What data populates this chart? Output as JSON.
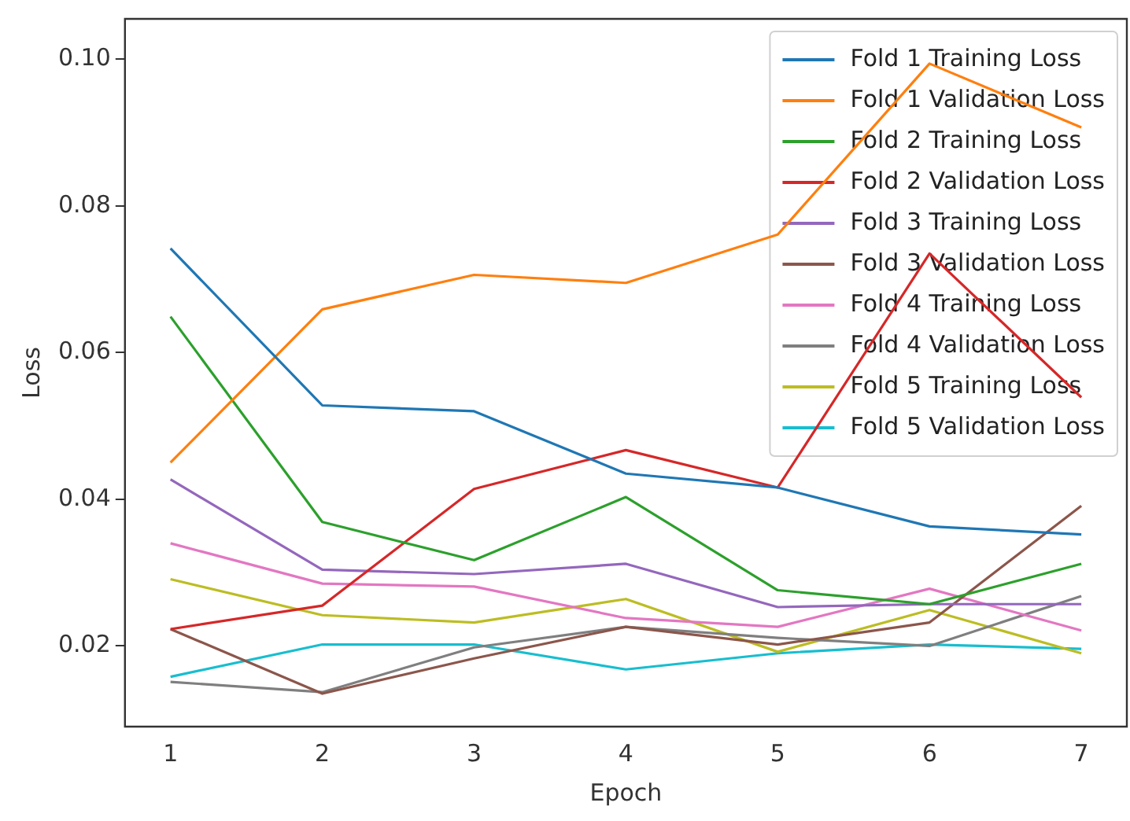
{
  "chart_data": {
    "type": "line",
    "xlabel": "Epoch",
    "ylabel": "Loss",
    "x": [
      1,
      2,
      3,
      4,
      5,
      6,
      7
    ],
    "xlim": [
      0.7,
      7.3
    ],
    "xticks": [
      1,
      2,
      3,
      4,
      5,
      6,
      7
    ],
    "ylim": [
      0.009,
      0.1055
    ],
    "yticks": [
      {
        "value": 0.02,
        "label": "0.02"
      },
      {
        "value": 0.04,
        "label": "0.04"
      },
      {
        "value": 0.06,
        "label": "0.06"
      },
      {
        "value": 0.08,
        "label": "0.08"
      },
      {
        "value": 0.1,
        "label": "0.10"
      }
    ],
    "grid": false,
    "legend": "top right",
    "marker": "none",
    "line_style": "solid",
    "series": [
      {
        "name": "Fold 1 Training Loss",
        "color": "#1f77b4",
        "values": [
          0.0742,
          0.0528,
          0.052,
          0.0435,
          0.0416,
          0.0363,
          0.0352
        ]
      },
      {
        "name": "Fold 1 Validation Loss",
        "color": "#ff7f0e",
        "values": [
          0.045,
          0.0659,
          0.0706,
          0.0695,
          0.0761,
          0.0994,
          0.0907
        ]
      },
      {
        "name": "Fold 2 Training Loss",
        "color": "#2ca02c",
        "values": [
          0.0649,
          0.0369,
          0.0317,
          0.0403,
          0.0276,
          0.0257,
          0.0312
        ]
      },
      {
        "name": "Fold 2 Validation Loss",
        "color": "#d62728",
        "values": [
          0.0223,
          0.0255,
          0.0414,
          0.0467,
          0.0416,
          0.0735,
          0.0539
        ]
      },
      {
        "name": "Fold 3 Training Loss",
        "color": "#9467bd",
        "values": [
          0.0427,
          0.0304,
          0.0298,
          0.0312,
          0.0253,
          0.0257,
          0.0257
        ]
      },
      {
        "name": "Fold 3 Validation Loss",
        "color": "#8c564b",
        "values": [
          0.0223,
          0.0135,
          0.0183,
          0.0226,
          0.0202,
          0.0232,
          0.0391
        ]
      },
      {
        "name": "Fold 4 Training Loss",
        "color": "#e377c2",
        "values": [
          0.034,
          0.0285,
          0.0281,
          0.0238,
          0.0226,
          0.0278,
          0.0221
        ]
      },
      {
        "name": "Fold 4 Validation Loss",
        "color": "#7f7f7f",
        "values": [
          0.0151,
          0.0137,
          0.0198,
          0.0226,
          0.0211,
          0.02,
          0.0268
        ]
      },
      {
        "name": "Fold 5 Training Loss",
        "color": "#bcbd22",
        "values": [
          0.0291,
          0.0242,
          0.0232,
          0.0264,
          0.0192,
          0.0249,
          0.019
        ]
      },
      {
        "name": "Fold 5 Validation Loss",
        "color": "#17becf",
        "values": [
          0.0158,
          0.0202,
          0.0202,
          0.0168,
          0.019,
          0.0202,
          0.0196
        ]
      }
    ]
  }
}
